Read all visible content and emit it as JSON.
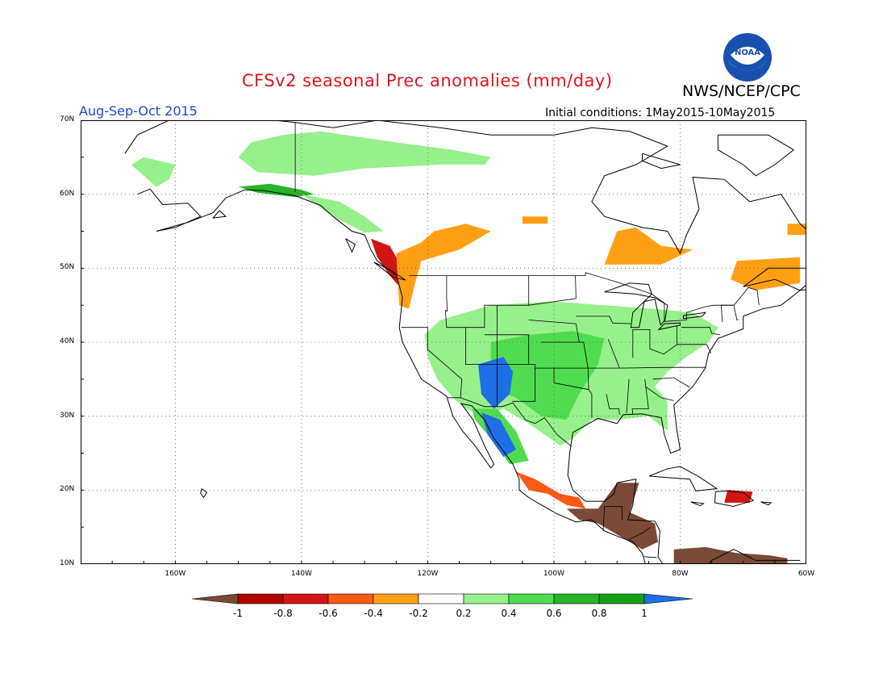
{
  "header": {
    "title": "CFSv2 seasonal Prec anomalies (mm/day)",
    "season": "Aug-Sep-Oct 2015",
    "initial_conditions": "Initial conditions: 1May2015-10May2015",
    "agency": "NWS/NCEP/CPC",
    "logo_text": "NOAA"
  },
  "map": {
    "lon_range": [
      -175,
      -60
    ],
    "lat_range": [
      10,
      70
    ],
    "lat_labels": [
      "70N",
      "60N",
      "50N",
      "40N",
      "30N",
      "20N",
      "10N"
    ],
    "lat_values": [
      70,
      60,
      50,
      40,
      30,
      20,
      10
    ],
    "lon_labels": [
      "160W",
      "140W",
      "120W",
      "100W",
      "80W",
      "60W"
    ],
    "lon_values": [
      -160,
      -140,
      -120,
      -100,
      -80,
      -60
    ],
    "grid": "dotted",
    "anomaly_regions": [
      {
        "name": "Alaska interior/north",
        "category": 0.3
      },
      {
        "name": "Alaska south coast",
        "category": 0.7
      },
      {
        "name": "Pacific Northwest coast",
        "category": -0.7
      },
      {
        "name": "British Columbia interior",
        "category": -0.3
      },
      {
        "name": "Western US",
        "category": 0.3
      },
      {
        "name": "Southern Plains",
        "category": 0.5
      },
      {
        "name": "Four Corners",
        "category": 1.0
      },
      {
        "name": "Northwest Mexico",
        "category": 1.0
      },
      {
        "name": "Central Canada",
        "category": -0.3
      },
      {
        "name": "Southern Mexico",
        "category": -0.7
      },
      {
        "name": "Central America",
        "category": -1.0
      },
      {
        "name": "Hispaniola",
        "category": -0.7
      }
    ]
  },
  "colorbar": {
    "labels": [
      "-1",
      "-0.8",
      "-0.6",
      "-0.4",
      "-0.2",
      "0.2",
      "0.4",
      "0.6",
      "0.8",
      "1"
    ],
    "colors": [
      "#7a4a37",
      "#b40000",
      "#d21414",
      "#ff5a14",
      "#ffa014",
      "#ffffff",
      "#96f08c",
      "#50dc50",
      "#28b428",
      "#14a014",
      "#1e6ee6"
    ]
  }
}
